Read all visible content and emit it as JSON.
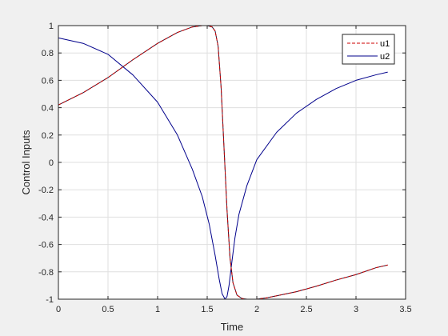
{
  "chart_data": {
    "type": "line",
    "title": "",
    "xlabel": "Time",
    "ylabel": "Control Inputs",
    "xlim": [
      0,
      3.5
    ],
    "ylim": [
      -1,
      1
    ],
    "xticks": [
      0,
      0.5,
      1,
      1.5,
      2,
      2.5,
      3,
      3.5
    ],
    "xtick_labels": [
      "0",
      "0.5",
      "1",
      "1.5",
      "2",
      "2.5",
      "3",
      "3.5"
    ],
    "yticks": [
      -1,
      -0.8,
      -0.6,
      -0.4,
      -0.2,
      0,
      0.2,
      0.4,
      0.6,
      0.8,
      1
    ],
    "ytick_labels": [
      "-1",
      "-0.8",
      "-0.6",
      "-0.4",
      "-0.2",
      "0",
      "0.2",
      "0.4",
      "0.6",
      "0.8",
      "1"
    ],
    "grid": true,
    "legend_position": "top-right",
    "series": [
      {
        "name": "u1",
        "color": "#cc0000",
        "style": "dashed",
        "x": [
          0,
          0.25,
          0.5,
          0.75,
          1.0,
          1.2,
          1.35,
          1.45,
          1.5,
          1.55,
          1.58,
          1.61,
          1.64,
          1.67,
          1.7,
          1.73,
          1.76,
          1.8,
          1.85,
          1.9,
          2.0,
          2.1,
          2.2,
          2.4,
          2.6,
          2.8,
          3.0,
          3.2,
          3.32
        ],
        "y": [
          0.42,
          0.51,
          0.62,
          0.75,
          0.87,
          0.95,
          0.99,
          1.0,
          1.0,
          0.99,
          0.96,
          0.85,
          0.55,
          0.1,
          -0.35,
          -0.7,
          -0.88,
          -0.97,
          -0.995,
          -1.0,
          -1.0,
          -0.99,
          -0.975,
          -0.945,
          -0.905,
          -0.86,
          -0.82,
          -0.77,
          -0.75
        ]
      },
      {
        "name": "u2",
        "color": "#00008b",
        "style": "solid",
        "x": [
          0,
          0.25,
          0.5,
          0.75,
          1.0,
          1.2,
          1.35,
          1.45,
          1.52,
          1.58,
          1.62,
          1.65,
          1.68,
          1.7,
          1.72,
          1.75,
          1.78,
          1.82,
          1.9,
          2.0,
          2.2,
          2.4,
          2.6,
          2.8,
          3.0,
          3.2,
          3.32
        ],
        "y": [
          0.91,
          0.87,
          0.79,
          0.64,
          0.44,
          0.2,
          -0.05,
          -0.25,
          -0.45,
          -0.68,
          -0.85,
          -0.96,
          -1.0,
          -0.98,
          -0.9,
          -0.72,
          -0.55,
          -0.38,
          -0.17,
          0.02,
          0.22,
          0.36,
          0.46,
          0.54,
          0.6,
          0.64,
          0.66
        ]
      }
    ]
  }
}
